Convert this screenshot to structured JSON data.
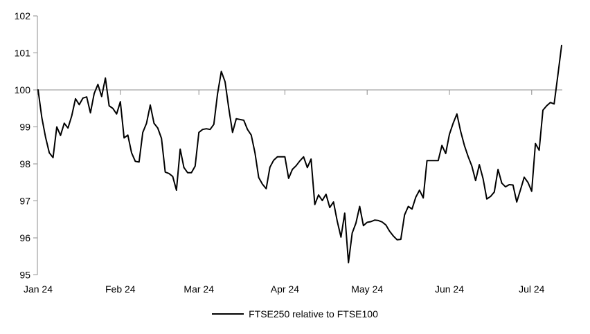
{
  "chart_data": {
    "type": "line",
    "title": "",
    "legend_position": "bottom-center",
    "grid": "single horizontal gridline at baseline value 100; no other gridlines; no bottom axis line",
    "ylim": [
      95,
      102
    ],
    "baseline_value": 100,
    "y_tick_labels": [
      "95",
      "96",
      "97",
      "98",
      "99",
      "100",
      "101",
      "102"
    ],
    "x_tick_labels": [
      "Jan 24",
      "Feb 24",
      "Mar 24",
      "Apr 24",
      "May 24",
      "Jun 24",
      "Jul 24"
    ],
    "x_tick_indices": [
      0,
      22,
      43,
      66,
      88,
      110,
      132
    ],
    "colors": {
      "line": "#000000",
      "axis": "#8c8c8c",
      "text": "#000000"
    },
    "series": [
      {
        "name": "FTSE250 relative to FTSE100",
        "color": "#000000",
        "values": [
          100.0,
          99.25,
          98.72,
          98.3,
          98.17,
          99.0,
          98.77,
          99.1,
          98.97,
          99.3,
          99.76,
          99.6,
          99.78,
          99.81,
          99.38,
          99.9,
          100.15,
          99.82,
          100.32,
          99.57,
          99.5,
          99.35,
          99.68,
          98.7,
          98.78,
          98.3,
          98.07,
          98.05,
          98.85,
          99.1,
          99.59,
          99.1,
          98.97,
          98.69,
          97.78,
          97.74,
          97.66,
          97.29,
          98.4,
          97.9,
          97.76,
          97.76,
          97.94,
          98.85,
          98.93,
          98.95,
          98.93,
          99.07,
          99.9,
          100.5,
          100.22,
          99.5,
          98.85,
          99.22,
          99.2,
          99.18,
          98.93,
          98.78,
          98.3,
          97.63,
          97.45,
          97.33,
          97.91,
          98.1,
          98.19,
          98.19,
          98.19,
          97.61,
          97.85,
          97.95,
          98.08,
          98.19,
          97.9,
          98.13,
          96.9,
          97.16,
          97.01,
          97.18,
          96.82,
          96.97,
          96.45,
          96.02,
          96.67,
          95.33,
          96.13,
          96.4,
          96.85,
          96.33,
          96.42,
          96.44,
          96.48,
          96.47,
          96.43,
          96.35,
          96.18,
          96.05,
          95.95,
          95.96,
          96.62,
          96.85,
          96.78,
          97.1,
          97.29,
          97.08,
          98.09,
          98.09,
          98.09,
          98.09,
          98.5,
          98.28,
          98.8,
          99.1,
          99.35,
          98.88,
          98.5,
          98.2,
          97.94,
          97.55,
          97.98,
          97.6,
          97.05,
          97.12,
          97.24,
          97.85,
          97.48,
          97.38,
          97.44,
          97.43,
          96.97,
          97.3,
          97.64,
          97.5,
          97.26,
          98.55,
          98.37,
          99.45,
          99.57,
          99.66,
          99.62,
          100.4,
          101.2
        ]
      }
    ]
  }
}
